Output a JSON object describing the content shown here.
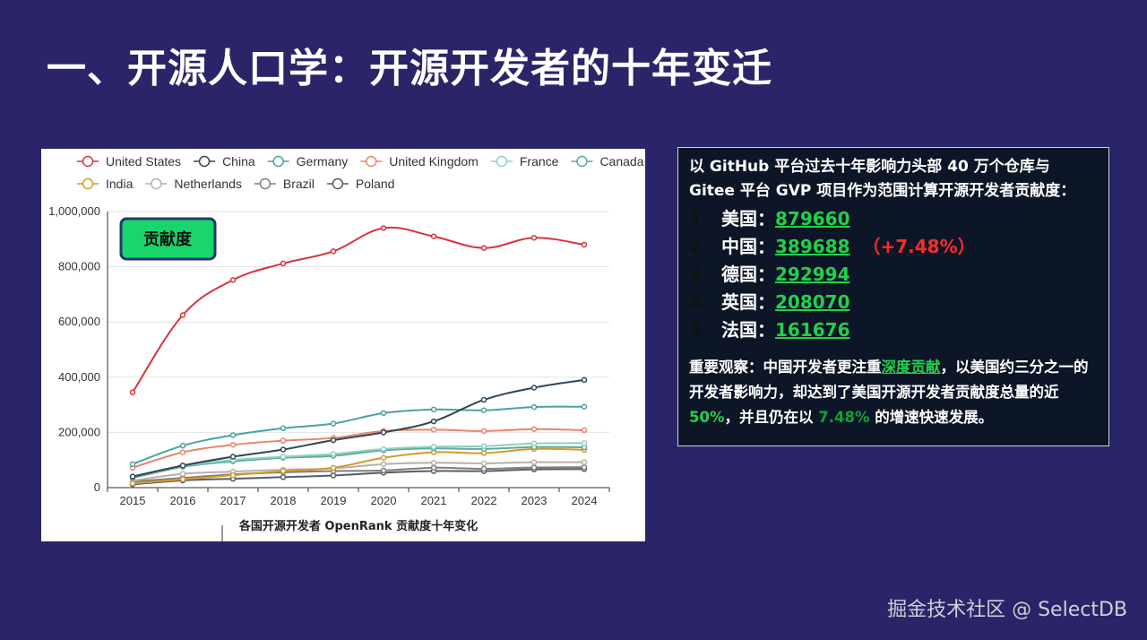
{
  "slide_title": "一、开源人口学：开源开发者的十年变迁",
  "chart_data": {
    "type": "line",
    "title": "",
    "caption": "各国开源开发者 OpenRank 贡献度十年变化",
    "badge": "贡献度",
    "xlabel": "",
    "ylabel": "",
    "x": [
      "2015",
      "2016",
      "2017",
      "2018",
      "2019",
      "2020",
      "2021",
      "2022",
      "2023",
      "2024"
    ],
    "ylim": [
      0,
      1000000
    ],
    "yticks": [
      "0",
      "200,000",
      "400,000",
      "600,000",
      "800,000",
      "1,000,000"
    ],
    "grid": true,
    "legend_position": "top",
    "series": [
      {
        "name": "United States",
        "color": "#d7343a",
        "values": [
          345000,
          625000,
          752000,
          812000,
          856000,
          940000,
          910000,
          868000,
          905000,
          880000
        ]
      },
      {
        "name": "China",
        "color": "#2f4557",
        "values": [
          40000,
          80000,
          112000,
          138000,
          172000,
          200000,
          240000,
          318000,
          362000,
          390000
        ]
      },
      {
        "name": "Germany",
        "color": "#4aa3a0",
        "values": [
          85000,
          152000,
          190000,
          215000,
          232000,
          270000,
          283000,
          280000,
          292000,
          293000
        ]
      },
      {
        "name": "United Kingdom",
        "color": "#e8836b",
        "values": [
          72000,
          128000,
          155000,
          170000,
          180000,
          205000,
          210000,
          205000,
          212000,
          208000
        ]
      },
      {
        "name": "France",
        "color": "#8fd1bd",
        "values": [
          40000,
          78000,
          100000,
          112000,
          122000,
          140000,
          148000,
          150000,
          160000,
          161000
        ]
      },
      {
        "name": "Canada",
        "color": "#5fa89c",
        "values": [
          35000,
          75000,
          95000,
          108000,
          115000,
          135000,
          142000,
          140000,
          147000,
          146000
        ]
      },
      {
        "name": "India",
        "color": "#d99827",
        "values": [
          15000,
          30000,
          45000,
          60000,
          72000,
          108000,
          128000,
          125000,
          140000,
          137000
        ]
      },
      {
        "name": "Netherlands",
        "color": "#b9b0a8",
        "values": [
          25000,
          50000,
          58000,
          65000,
          70000,
          85000,
          90000,
          88000,
          92000,
          92000
        ]
      },
      {
        "name": "Brazil",
        "color": "#7e7e7e",
        "values": [
          22000,
          35000,
          48000,
          55000,
          60000,
          62000,
          72000,
          68000,
          73000,
          74000
        ]
      },
      {
        "name": "Poland",
        "color": "#555c66",
        "values": [
          12000,
          26000,
          32000,
          38000,
          44000,
          54000,
          60000,
          60000,
          66000,
          67000
        ]
      }
    ]
  },
  "info_box": {
    "intro": "以 GitHub 平台过去十年影响力头部 40 万个仓库与 Gitee 平台 GVP 项目作为范围计算开源开发者贡献度：",
    "ranks": [
      {
        "num": "1.",
        "country": "美国：",
        "value": "879660",
        "growth": ""
      },
      {
        "num": "2.",
        "country": "中国：",
        "value": "389688",
        "growth": "（+7.48%）"
      },
      {
        "num": "3.",
        "country": "德国：",
        "value": "292994",
        "growth": ""
      },
      {
        "num": "4.",
        "country": "英国：",
        "value": "208070",
        "growth": ""
      },
      {
        "num": "5.",
        "country": "法国：",
        "value": "161676",
        "growth": ""
      }
    ],
    "obs_lead": "重要观察：中国开发者更注重",
    "obs_link": "深度贡献",
    "obs_mid": "，以美国约三分之一的开发者影响力，却达到了美国开源开发者贡献度总量的近 ",
    "obs_pct": "50%",
    "obs_mid2": "，并且仍在以 ",
    "obs_rate": "7.48%",
    "obs_tail": " 的增速快速发展。"
  },
  "watermark": "掘金技术社区 @ SelectDB"
}
